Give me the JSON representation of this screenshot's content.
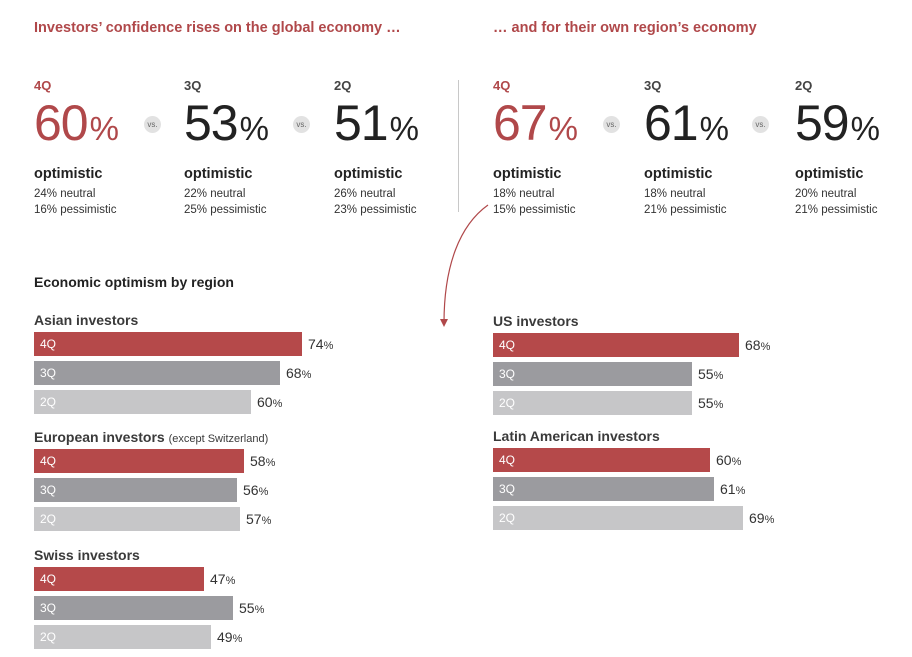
{
  "headlines": {
    "global": "Investors’ confidence rises on the global economy …",
    "region": "… and for their own region’s economy"
  },
  "vs_label": "vs.",
  "optimistic_label": "optimistic",
  "global_stats": [
    {
      "quarter": "4Q",
      "value": "60",
      "pct": "%",
      "neutral": "24% neutral",
      "pessimistic": "16% pessimistic"
    },
    {
      "quarter": "3Q",
      "value": "53",
      "pct": "%",
      "neutral": "22% neutral",
      "pessimistic": "25% pessimistic"
    },
    {
      "quarter": "2Q",
      "value": "51",
      "pct": "%",
      "neutral": "26% neutral",
      "pessimistic": "23% pessimistic"
    }
  ],
  "region_stats": [
    {
      "quarter": "4Q",
      "value": "67",
      "pct": "%",
      "neutral": "18% neutral",
      "pessimistic": "15% pessimistic"
    },
    {
      "quarter": "3Q",
      "value": "61",
      "pct": "%",
      "neutral": "18% neutral",
      "pessimistic": "21% pessimistic"
    },
    {
      "quarter": "2Q",
      "value": "59",
      "pct": "%",
      "neutral": "20% neutral",
      "pessimistic": "21% pessimistic"
    }
  ],
  "colors": {
    "q4": "#b5494a",
    "q3": "#9b9b9f",
    "q2": "#c6c6c8",
    "accent": "#b0484a"
  },
  "chart_data": {
    "type": "bar",
    "title": "Economic optimism by region",
    "unit": "%",
    "categories": [
      "4Q",
      "3Q",
      "2Q"
    ],
    "series": [
      {
        "name": "Asian investors",
        "note": "",
        "values": [
          74,
          68,
          60
        ]
      },
      {
        "name": "European investors",
        "note": "(except Switzerland)",
        "values": [
          58,
          56,
          57
        ]
      },
      {
        "name": "Swiss investors",
        "note": "",
        "values": [
          47,
          55,
          49
        ]
      },
      {
        "name": "US investors",
        "note": "",
        "values": [
          68,
          55,
          55
        ]
      },
      {
        "name": "Latin American investors",
        "note": "",
        "values": [
          60,
          61,
          69
        ]
      }
    ]
  }
}
